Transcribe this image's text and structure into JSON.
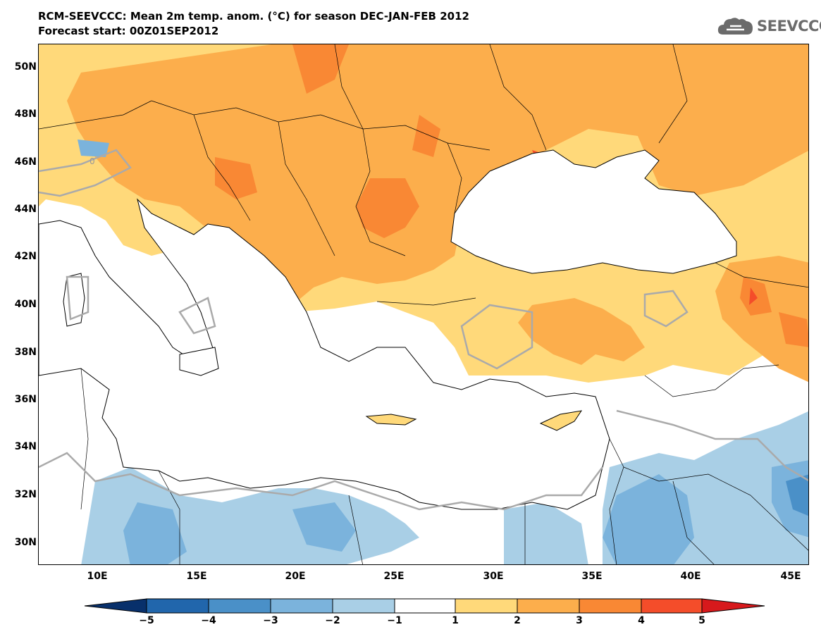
{
  "header": {
    "title": "RCM-SEEVCCC: Mean 2m temp. anom. (°C) for season DEC-JAN-FEB 2012",
    "subtitle": "Forecast start: 00Z01SEP2012",
    "logo_text": "SEEVCCC",
    "logo_icon": "cloud-icon"
  },
  "map": {
    "lat_ticks": [
      "50N",
      "48N",
      "46N",
      "44N",
      "42N",
      "40N",
      "38N",
      "36N",
      "34N",
      "32N",
      "30N"
    ],
    "lon_ticks": [
      "10E",
      "15E",
      "20E",
      "25E",
      "30E",
      "35E",
      "40E",
      "45E"
    ],
    "contour_label": "0"
  },
  "colorbar": {
    "ticks": [
      "−5",
      "−4",
      "−3",
      "−2",
      "−1",
      "1",
      "2",
      "3",
      "4",
      "5"
    ],
    "colors": [
      "#08306b",
      "#2166ac",
      "#4a90c8",
      "#7bb3dc",
      "#a9cfe6",
      "#ffffff",
      "#ffd97a",
      "#fcae4c",
      "#f98834",
      "#f44d2a",
      "#d7191c"
    ]
  }
}
